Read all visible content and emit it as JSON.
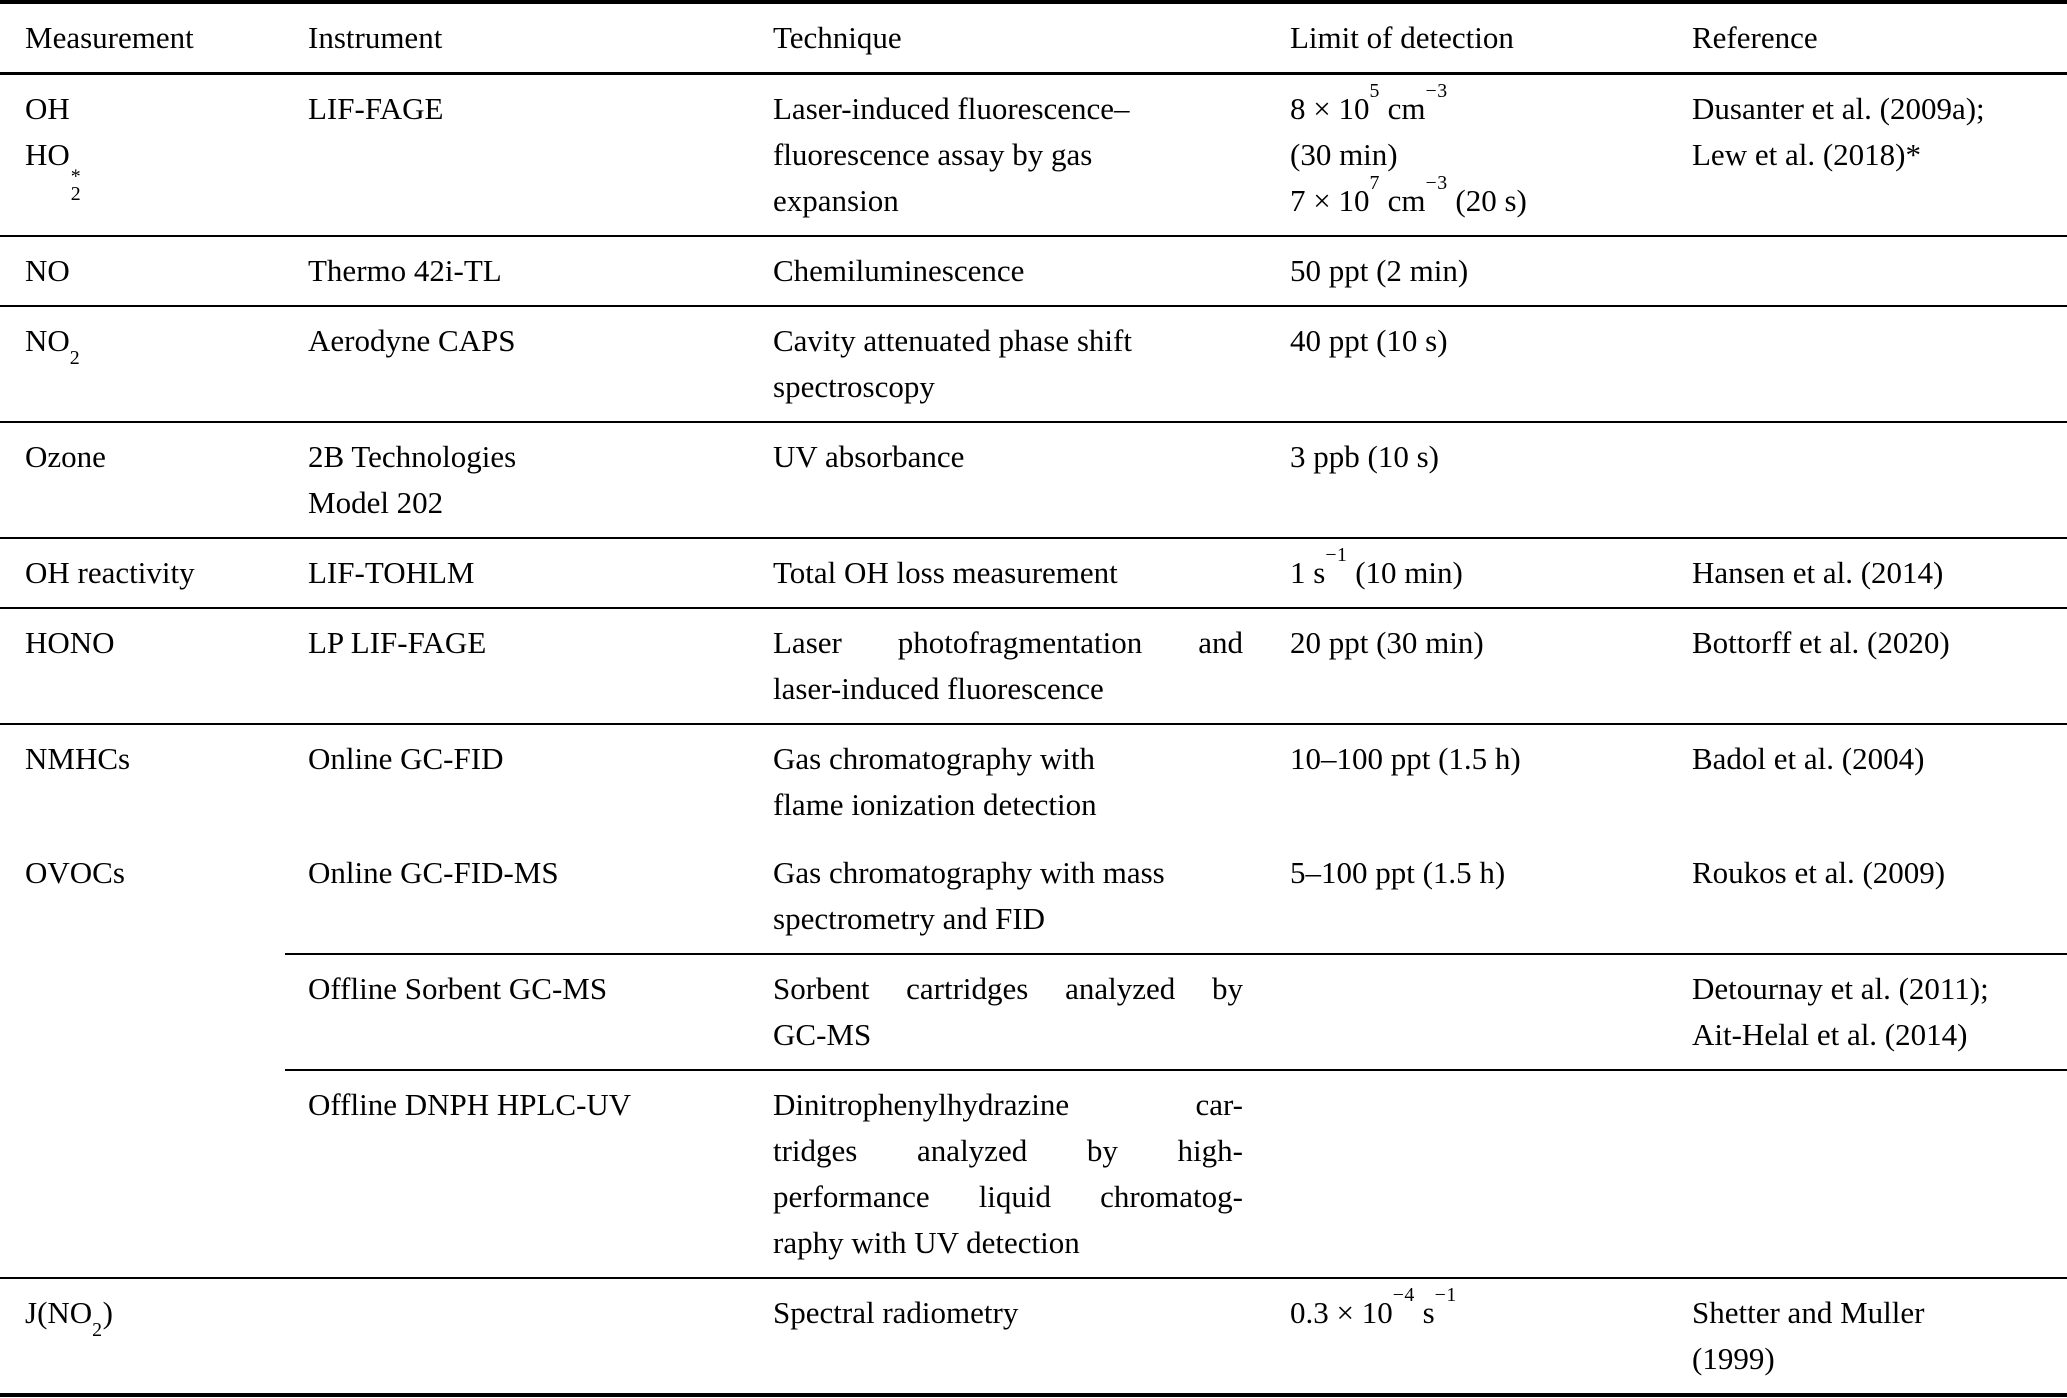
{
  "table": {
    "columns": [
      "Measurement",
      "Instrument",
      "Technique",
      "Limit of detection",
      "Reference"
    ],
    "rows": [
      {
        "measurement": [
          "OH",
          "HO_{2}^{*}"
        ],
        "instrument": [
          "LIF-FAGE"
        ],
        "technique": [
          "Laser-induced fluorescence–",
          "fluorescence assay by gas",
          "expansion"
        ],
        "limit": [
          "8 × 10^{5} cm^{−3}",
          "(30 min)",
          "7 × 10^{7} cm^{−3} (20 s)"
        ],
        "reference": [
          "Dusanter et al. (2009a);",
          "Lew et al. (2018)*"
        ]
      },
      {
        "measurement": [
          "NO"
        ],
        "instrument": [
          "Thermo 42i-TL"
        ],
        "technique": [
          "Chemiluminescence"
        ],
        "limit": [
          "50 ppt (2 min)"
        ],
        "reference": []
      },
      {
        "measurement": [
          "NO_{2}"
        ],
        "instrument": [
          "Aerodyne CAPS"
        ],
        "technique": [
          "Cavity attenuated phase shift",
          "spectroscopy"
        ],
        "limit": [
          "40 ppt (10 s)"
        ],
        "reference": []
      },
      {
        "measurement": [
          "Ozone"
        ],
        "instrument": [
          "2B Technologies",
          "Model 202"
        ],
        "technique": [
          "UV absorbance"
        ],
        "limit": [
          "3 ppb (10 s)"
        ],
        "reference": []
      },
      {
        "measurement": [
          "OH reactivity"
        ],
        "instrument": [
          "LIF-TOHLM"
        ],
        "technique": [
          "Total OH loss measurement"
        ],
        "limit": [
          "1 s^{−1} (10 min)"
        ],
        "reference": [
          "Hansen et al. (2014)"
        ]
      },
      {
        "measurement": [
          "HONO"
        ],
        "instrument": [
          "LP LIF-FAGE"
        ],
        "technique": [
          "Laser photofragmentation and",
          "laser-induced fluorescence"
        ],
        "technique_justify": [
          0
        ],
        "limit": [
          "20 ppt (30 min)"
        ],
        "reference": [
          "Bottorff et al. (2020)"
        ]
      },
      {
        "measurement": [
          "NMHCs"
        ],
        "instrument": [
          "Online GC-FID"
        ],
        "technique": [
          "Gas chromatography with",
          "flame ionization detection"
        ],
        "limit": [
          "10–100 ppt (1.5 h)"
        ],
        "reference": [
          "Badol et al. (2004)"
        ]
      },
      {
        "group_measurement": "OVOCs",
        "subrows": [
          {
            "instrument": [
              "Online GC-FID-MS"
            ],
            "technique": [
              "Gas chromatography with mass",
              "spectrometry and FID"
            ],
            "limit": [
              "5–100 ppt (1.5 h)"
            ],
            "reference": [
              "Roukos et al. (2009)"
            ]
          },
          {
            "instrument": [
              "Offline Sorbent GC-MS"
            ],
            "technique": [
              "Sorbent cartridges analyzed by",
              "GC-MS"
            ],
            "technique_justify": [
              0
            ],
            "limit": [],
            "reference": [
              "Detournay et al. (2011);",
              "Ait-Helal et al. (2014)"
            ]
          },
          {
            "instrument": [
              "Offline DNPH HPLC-UV"
            ],
            "technique": [
              "Dinitrophenylhydrazine car-",
              "tridges analyzed by high-",
              "performance liquid chromatog-",
              "raphy with UV detection"
            ],
            "technique_justify": [
              0,
              1,
              2
            ],
            "limit": [],
            "reference": []
          }
        ]
      },
      {
        "measurement": [
          "J(NO_{2})"
        ],
        "instrument": [],
        "technique": [
          "Spectral radiometry"
        ],
        "limit": [
          "0.3 × 10^{−4} s^{−1}"
        ],
        "reference": [
          "Shetter and Muller",
          "(1999)"
        ]
      }
    ]
  }
}
